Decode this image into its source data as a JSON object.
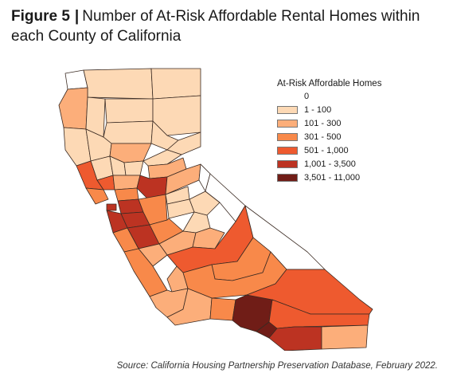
{
  "title": {
    "figure_label": "Figure 5",
    "separator": "|",
    "text": "Number of At-Risk Affordable Rental Homes within each County of California"
  },
  "legend": {
    "title": "At-Risk Affordable Homes",
    "zero_label": "0",
    "classes": [
      {
        "label": "1 - 100",
        "color": "#fdd9b5"
      },
      {
        "label": "101 - 300",
        "color": "#fcae7a"
      },
      {
        "label": "301 - 500",
        "color": "#f8894a"
      },
      {
        "label": "501 - 1,000",
        "color": "#ee5a2f"
      },
      {
        "label": "1,001 - 3,500",
        "color": "#bc3322"
      },
      {
        "label": "3,501 - 11,000",
        "color": "#701d17"
      }
    ],
    "zero_color": "#ffffff"
  },
  "source": "Source: California Housing Partnership Preservation Database, February 2022."
}
